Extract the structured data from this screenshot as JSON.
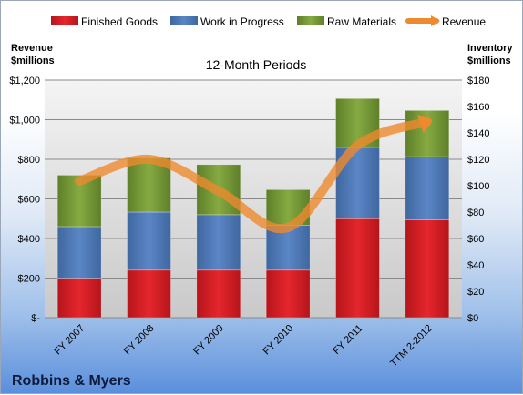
{
  "chart_data": {
    "type": "bar",
    "subtype": "stacked-bar-with-line",
    "title": "12-Month Periods",
    "company": "Robbins & Myers",
    "left_axis": {
      "label_lines": [
        "Revenue",
        "$millions"
      ],
      "ylim": [
        0,
        1200
      ],
      "ticks": [
        0,
        200,
        400,
        600,
        800,
        1000,
        1200
      ],
      "tick_labels": [
        "$-",
        "$200",
        "$400",
        "$600",
        "$800",
        "$1,000",
        "$1,200"
      ]
    },
    "right_axis": {
      "label_lines": [
        "Inventory",
        "$millions"
      ],
      "ylim": [
        0,
        180
      ],
      "ticks": [
        0,
        20,
        40,
        60,
        80,
        100,
        120,
        140,
        160,
        180
      ],
      "tick_labels": [
        "$0",
        "$20",
        "$40",
        "$60",
        "$80",
        "$100",
        "$120",
        "$140",
        "$160",
        "$180"
      ]
    },
    "categories": [
      "FY 2007",
      "FY 2008",
      "FY 2009",
      "FY 2010",
      "FY 2011",
      "TTM 2-2012"
    ],
    "series": [
      {
        "name": "Finished Goods",
        "axis": "right",
        "color": "#e8222a",
        "values": [
          30,
          36,
          36,
          36,
          75,
          74
        ]
      },
      {
        "name": "Work in Progress",
        "axis": "right",
        "color": "#4f7fc4",
        "values": [
          39,
          44,
          42,
          34,
          54,
          48
        ]
      },
      {
        "name": "Raw Materials",
        "axis": "right",
        "color": "#7ea03a",
        "values": [
          39,
          41,
          38,
          27,
          37,
          35
        ]
      },
      {
        "name": "Revenue",
        "axis": "left",
        "type": "line",
        "color": "#ee8a2e",
        "values": [
          690,
          800,
          640,
          455,
          870,
          990
        ]
      }
    ],
    "grid": true,
    "legend_position": "top"
  }
}
